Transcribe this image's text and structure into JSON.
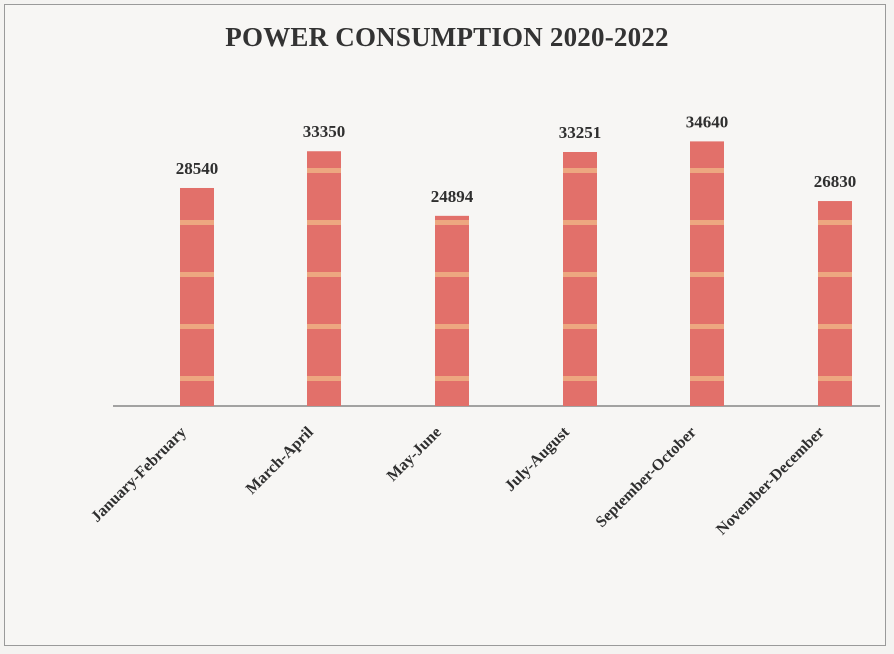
{
  "chart_data": {
    "type": "bar",
    "title": "POWER CONSUMPTION 2020-2022",
    "categories": [
      "January-February",
      "March-April",
      "May-June",
      "July-August",
      "September-October",
      "November-December"
    ],
    "values": [
      28540,
      33350,
      24894,
      33251,
      34640,
      26830
    ],
    "xlabel": "",
    "ylabel": "",
    "ylim": [
      0,
      36000
    ],
    "grid": false,
    "legend": "none",
    "bar_color": "#e2706a",
    "stripe_color": "#efb084"
  }
}
